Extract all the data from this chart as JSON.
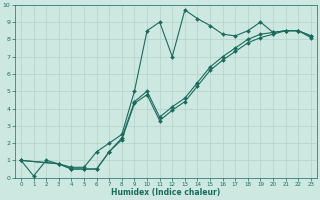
{
  "title": "",
  "xlabel": "Humidex (Indice chaleur)",
  "bg_color": "#cce8e0",
  "grid_color": "#b8d4cc",
  "line_color": "#1a6b5e",
  "xlim": [
    -0.5,
    23.5
  ],
  "ylim": [
    0,
    10
  ],
  "line1_x": [
    0,
    1,
    2,
    3,
    4,
    5,
    6,
    7,
    8,
    9,
    10,
    11,
    12,
    13,
    14,
    15,
    16,
    17,
    18,
    19,
    20,
    21,
    22,
    23
  ],
  "line1_y": [
    1,
    0.1,
    1.0,
    0.8,
    0.6,
    0.6,
    1.5,
    2.0,
    2.5,
    5.0,
    8.5,
    9.0,
    7.0,
    9.7,
    9.2,
    8.8,
    8.3,
    8.2,
    8.5,
    9.0,
    8.4,
    8.5,
    8.5,
    8.2
  ],
  "line2_x": [
    0,
    3,
    4,
    5,
    6,
    7,
    8,
    9,
    10,
    11,
    12,
    13,
    14,
    15,
    16,
    17,
    18,
    19,
    20,
    21,
    22,
    23
  ],
  "line2_y": [
    1,
    0.8,
    0.5,
    0.5,
    0.5,
    1.5,
    2.2,
    4.3,
    4.8,
    3.3,
    3.9,
    4.4,
    5.3,
    6.2,
    6.8,
    7.3,
    7.8,
    8.1,
    8.3,
    8.5,
    8.5,
    8.1
  ],
  "line3_x": [
    0,
    3,
    4,
    5,
    6,
    7,
    8,
    9,
    10,
    11,
    12,
    13,
    14,
    15,
    16,
    17,
    18,
    19,
    20,
    21,
    22,
    23
  ],
  "line3_y": [
    1,
    0.8,
    0.5,
    0.5,
    0.5,
    1.5,
    2.3,
    4.4,
    5.0,
    3.5,
    4.1,
    4.6,
    5.5,
    6.4,
    7.0,
    7.5,
    8.0,
    8.3,
    8.4,
    8.5,
    8.5,
    8.2
  ]
}
